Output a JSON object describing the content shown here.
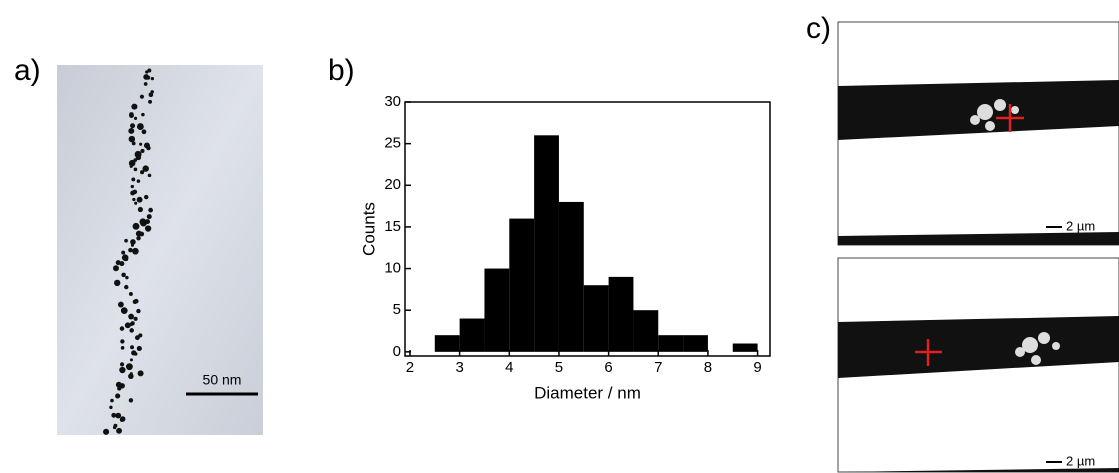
{
  "panel_labels": {
    "a": "a)",
    "b": "b)",
    "c": "c)"
  },
  "scale_bars": {
    "a": "50 nm",
    "c_top": "2 µm",
    "c_bottom": "2 µm"
  },
  "chart_data": {
    "type": "histogram",
    "xlabel": "Diameter / nm",
    "ylabel": "Counts",
    "bins": [
      2.5,
      3,
      3.5,
      4,
      4.5,
      5,
      5.5,
      6,
      6.5,
      7,
      7.5,
      8,
      8.5,
      9
    ],
    "counts": [
      2,
      4,
      10,
      16,
      26,
      18,
      8,
      9,
      5,
      2,
      2,
      0,
      1
    ],
    "color": "#000000",
    "xlim": [
      1.9,
      9.25
    ],
    "ylim": [
      -0.5,
      30
    ],
    "xticks": [
      2,
      3,
      4,
      5,
      6,
      7,
      8,
      9
    ],
    "yticks": [
      0,
      5,
      10,
      15,
      20,
      25,
      30
    ]
  }
}
